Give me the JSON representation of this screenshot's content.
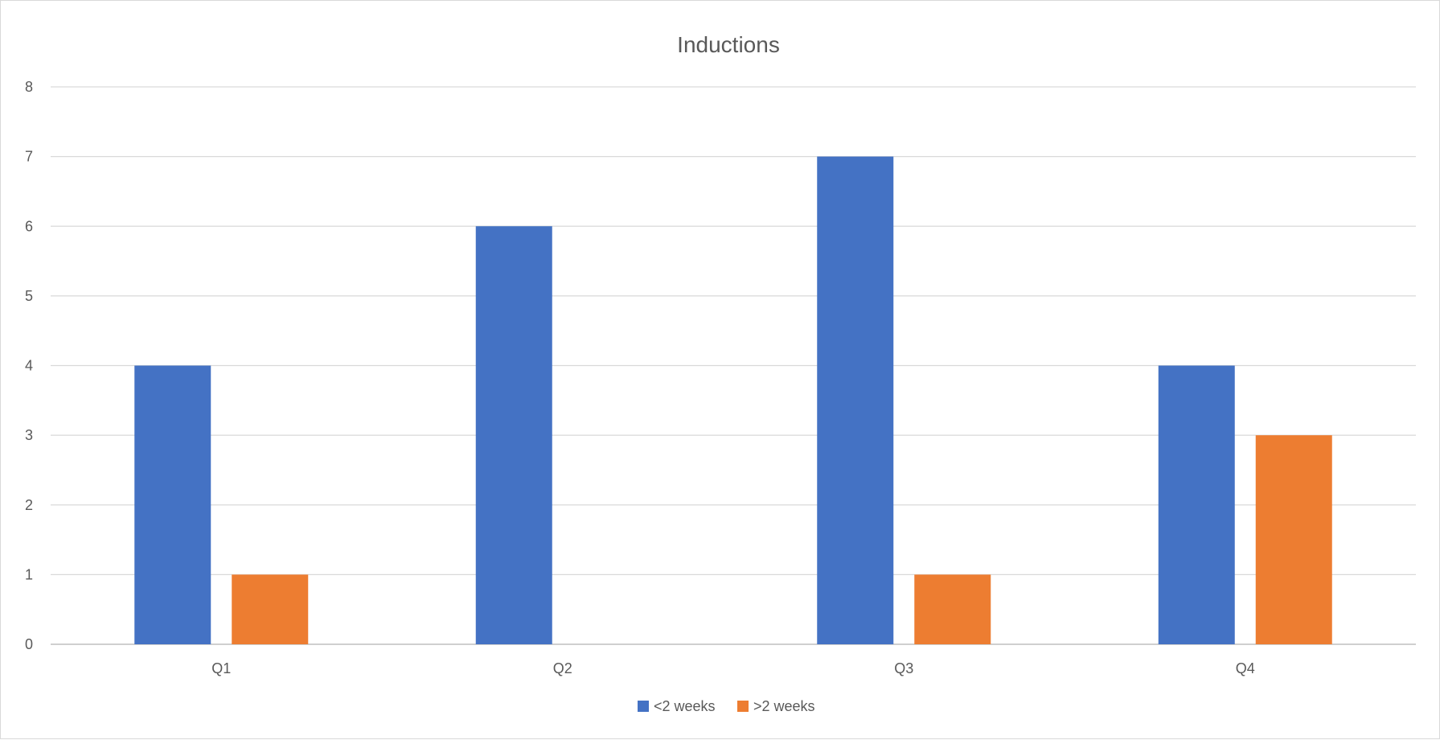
{
  "chart_data": {
    "type": "bar",
    "title": "Inductions",
    "xlabel": "",
    "ylabel": "",
    "categories": [
      "Q1",
      "Q2",
      "Q3",
      "Q4"
    ],
    "series": [
      {
        "name": "<2 weeks",
        "color": "#4472C4",
        "values": [
          4,
          6,
          7,
          4
        ]
      },
      {
        "name": ">2 weeks",
        "color": "#ED7D31",
        "values": [
          1,
          0,
          1,
          3
        ]
      }
    ],
    "ylim": [
      0,
      8
    ],
    "yticks": [
      "0",
      "1",
      "2",
      "3",
      "4",
      "5",
      "6",
      "7",
      "8"
    ],
    "grid": true,
    "legend_position": "bottom"
  }
}
